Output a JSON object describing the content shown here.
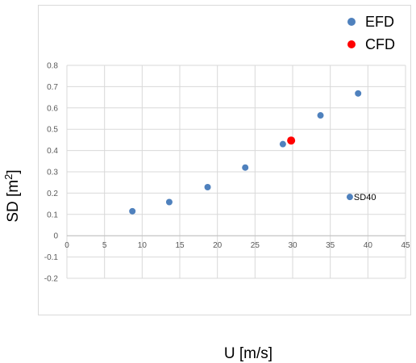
{
  "chart_data": {
    "type": "scatter",
    "xlabel": "U [m/s]",
    "ylabel_main": "SD [m",
    "ylabel_sup": "2",
    "ylabel_end": "]",
    "xlim": [
      0,
      45
    ],
    "ylim": [
      -0.2,
      0.8
    ],
    "x_ticks": [
      0,
      5,
      10,
      15,
      20,
      25,
      30,
      35,
      40,
      45
    ],
    "y_ticks": [
      -0.2,
      -0.1,
      0,
      0.1,
      0.2,
      0.3,
      0.4,
      0.5,
      0.6,
      0.7,
      0.8
    ],
    "x_tick_labels": [
      "0",
      "5",
      "10",
      "15",
      "20",
      "25",
      "30",
      "35",
      "40",
      "45"
    ],
    "y_tick_labels": [
      "-0.2",
      "-0.1",
      "0",
      "0.1",
      "0.2",
      "0.3",
      "0.4",
      "0.5",
      "0.6",
      "0.7",
      "0.8"
    ],
    "grid": true,
    "legend_position": "top-right",
    "series": [
      {
        "name": "EFD",
        "color": "#4f81bd",
        "points": [
          {
            "x": 8.7,
            "y": 0.115
          },
          {
            "x": 13.6,
            "y": 0.158
          },
          {
            "x": 18.7,
            "y": 0.228
          },
          {
            "x": 23.7,
            "y": 0.32
          },
          {
            "x": 28.7,
            "y": 0.43
          },
          {
            "x": 33.7,
            "y": 0.565
          },
          {
            "x": 38.7,
            "y": 0.668
          },
          {
            "x": 37.6,
            "y": 0.182,
            "label": "SD40"
          }
        ]
      },
      {
        "name": "CFD",
        "color": "#ff0000",
        "points": [
          {
            "x": 29.8,
            "y": 0.447
          }
        ]
      }
    ]
  }
}
